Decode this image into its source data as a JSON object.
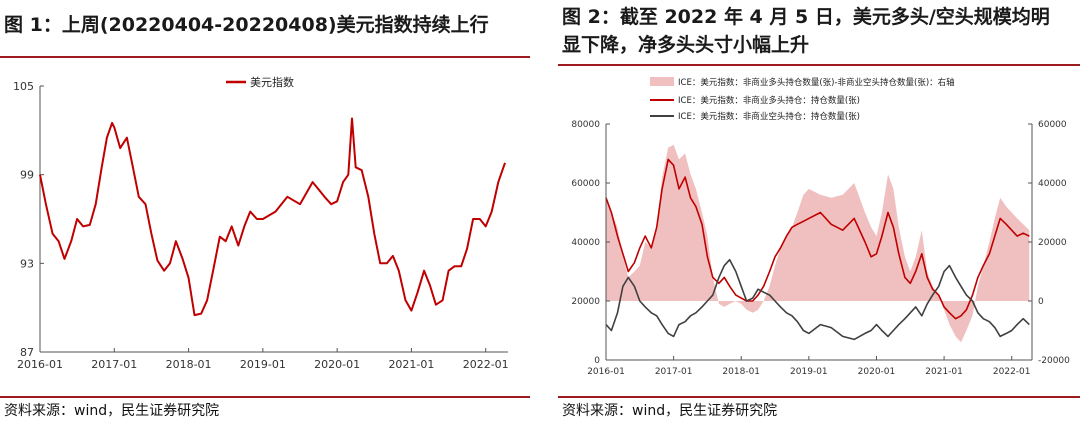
{
  "left": {
    "title": "图 1：上周(20220404-20220408)美元指数持续上行",
    "source": "资料来源：wind，民生证券研究院",
    "chart_data": {
      "type": "line",
      "title": "",
      "xlabel": "",
      "ylabel": "",
      "ylim": [
        87,
        105
      ],
      "yticks": [
        "87",
        "93",
        "99",
        "105"
      ],
      "xticks": [
        "2016-01",
        "2017-01",
        "2018-01",
        "2019-01",
        "2020-01",
        "2021-01",
        "2022-01"
      ],
      "legend": "top-center",
      "grid": false,
      "series": [
        {
          "name": "美元指数",
          "color": "#c00000",
          "x": [
            2016.0,
            2016.08,
            2016.17,
            2016.25,
            2016.33,
            2016.42,
            2016.5,
            2016.58,
            2016.67,
            2016.75,
            2016.83,
            2016.9,
            2016.97,
            2017.0,
            2017.08,
            2017.17,
            2017.25,
            2017.33,
            2017.42,
            2017.5,
            2017.58,
            2017.67,
            2017.75,
            2017.83,
            2017.92,
            2018.0,
            2018.08,
            2018.17,
            2018.25,
            2018.33,
            2018.42,
            2018.5,
            2018.58,
            2018.67,
            2018.75,
            2018.83,
            2018.92,
            2019.0,
            2019.17,
            2019.33,
            2019.5,
            2019.67,
            2019.75,
            2019.83,
            2019.92,
            2020.0,
            2020.08,
            2020.15,
            2020.2,
            2020.25,
            2020.33,
            2020.42,
            2020.5,
            2020.58,
            2020.67,
            2020.75,
            2020.83,
            2020.92,
            2021.0,
            2021.08,
            2021.17,
            2021.25,
            2021.33,
            2021.42,
            2021.5,
            2021.58,
            2021.67,
            2021.75,
            2021.83,
            2021.92,
            2022.0,
            2022.08,
            2022.17,
            2022.26
          ],
          "y": [
            99.0,
            97.0,
            95.0,
            94.5,
            93.3,
            94.5,
            96.0,
            95.5,
            95.6,
            97.0,
            99.5,
            101.5,
            102.5,
            102.2,
            100.8,
            101.5,
            99.5,
            97.5,
            97.0,
            95.0,
            93.2,
            92.5,
            93.0,
            94.5,
            93.3,
            92.0,
            89.5,
            89.6,
            90.5,
            92.5,
            94.8,
            94.5,
            95.5,
            94.2,
            95.5,
            96.5,
            96.0,
            96.0,
            96.5,
            97.5,
            97.0,
            98.5,
            98.0,
            97.5,
            97.0,
            97.2,
            98.5,
            99.0,
            102.8,
            99.5,
            99.3,
            97.5,
            95.0,
            93.0,
            93.0,
            93.5,
            92.5,
            90.5,
            89.8,
            91.0,
            92.5,
            91.5,
            90.2,
            90.5,
            92.5,
            92.8,
            92.8,
            94.0,
            96.0,
            96.0,
            95.5,
            96.5,
            98.5,
            99.8
          ]
        }
      ]
    }
  },
  "right": {
    "title_lines": [
      "图 2：截至 2022 年 4 月 5 日，美元多头/空头规模均明",
      "显下降，净多头头寸小幅上升"
    ],
    "source": "资料来源：wind，民生证券研究院",
    "chart_data": {
      "type": "line",
      "title": "",
      "xlabel": "",
      "ylabel": "",
      "ylim": [
        0,
        80000
      ],
      "y2lim": [
        -20000,
        60000
      ],
      "yticks": [
        "0",
        "20000",
        "40000",
        "60000",
        "80000"
      ],
      "y2ticks": [
        "-20000",
        "0",
        "20000",
        "40000",
        "60000"
      ],
      "xticks": [
        "2016-01",
        "2017-01",
        "2018-01",
        "2019-01",
        "2020-01",
        "2021-01",
        "2022-01"
      ],
      "legend": "top-left",
      "grid": false,
      "series": [
        {
          "name": "ICE：美元指数：非商业多头持仓数量(张)-非商业空头持仓数量(张)：右轴",
          "kind": "area",
          "axis": "right",
          "color": "#f0c0c0",
          "x": [
            2016.0,
            2016.08,
            2016.17,
            2016.25,
            2016.33,
            2016.42,
            2016.5,
            2016.58,
            2016.67,
            2016.75,
            2016.83,
            2016.92,
            2017.0,
            2017.08,
            2017.17,
            2017.25,
            2017.33,
            2017.42,
            2017.5,
            2017.58,
            2017.67,
            2017.75,
            2017.83,
            2017.92,
            2018.0,
            2018.08,
            2018.17,
            2018.25,
            2018.33,
            2018.42,
            2018.5,
            2018.58,
            2018.67,
            2018.75,
            2018.83,
            2018.92,
            2019.0,
            2019.17,
            2019.33,
            2019.5,
            2019.67,
            2019.83,
            2019.92,
            2020.0,
            2020.08,
            2020.17,
            2020.25,
            2020.33,
            2020.42,
            2020.5,
            2020.58,
            2020.67,
            2020.75,
            2020.83,
            2020.92,
            2021.0,
            2021.08,
            2021.17,
            2021.25,
            2021.33,
            2021.42,
            2021.5,
            2021.58,
            2021.67,
            2021.75,
            2021.83,
            2021.92,
            2022.0,
            2022.08,
            2022.17,
            2022.26
          ],
          "y": [
            36000,
            30000,
            25000,
            15000,
            8000,
            10000,
            12000,
            20000,
            18000,
            25000,
            42000,
            52000,
            53000,
            48000,
            50000,
            43000,
            38000,
            30000,
            22000,
            8000,
            -1000,
            -2000,
            -1000,
            0,
            -1000,
            -3000,
            -4000,
            -3000,
            0,
            5000,
            12000,
            18000,
            22000,
            25000,
            30000,
            36000,
            38000,
            36000,
            35000,
            36000,
            40000,
            30000,
            25000,
            22000,
            30000,
            43000,
            38000,
            25000,
            15000,
            10000,
            15000,
            24000,
            10000,
            5000,
            2000,
            -3000,
            -8000,
            -12000,
            -14000,
            -10000,
            -5000,
            5000,
            12000,
            20000,
            28000,
            35000,
            32000,
            30000,
            28000,
            26000,
            24000
          ]
        },
        {
          "name": "ICE：美元指数：非商业多头持仓：持仓数量(张)",
          "kind": "line",
          "axis": "left",
          "color": "#c00000",
          "x": [
            2016.0,
            2016.08,
            2016.17,
            2016.25,
            2016.33,
            2016.42,
            2016.5,
            2016.58,
            2016.67,
            2016.75,
            2016.83,
            2016.92,
            2017.0,
            2017.08,
            2017.17,
            2017.25,
            2017.33,
            2017.42,
            2017.5,
            2017.58,
            2017.67,
            2017.75,
            2017.83,
            2017.92,
            2018.0,
            2018.08,
            2018.17,
            2018.25,
            2018.33,
            2018.42,
            2018.5,
            2018.58,
            2018.67,
            2018.75,
            2018.83,
            2018.92,
            2019.0,
            2019.17,
            2019.33,
            2019.5,
            2019.67,
            2019.83,
            2019.92,
            2020.0,
            2020.08,
            2020.17,
            2020.25,
            2020.33,
            2020.42,
            2020.5,
            2020.58,
            2020.67,
            2020.75,
            2020.83,
            2020.92,
            2021.0,
            2021.08,
            2021.17,
            2021.25,
            2021.33,
            2021.42,
            2021.5,
            2021.58,
            2021.67,
            2021.75,
            2021.83,
            2021.92,
            2022.0,
            2022.08,
            2022.17,
            2022.26
          ],
          "y": [
            55000,
            50000,
            42000,
            36000,
            30000,
            33000,
            38000,
            42000,
            38000,
            45000,
            58000,
            68000,
            66000,
            58000,
            62000,
            55000,
            52000,
            46000,
            35000,
            28000,
            26000,
            28000,
            25000,
            22000,
            21000,
            20000,
            20000,
            22000,
            25000,
            30000,
            35000,
            38000,
            42000,
            45000,
            46000,
            47000,
            48000,
            50000,
            46000,
            44000,
            48000,
            40000,
            35000,
            36000,
            42000,
            50000,
            45000,
            36000,
            28000,
            26000,
            30000,
            36000,
            28000,
            24000,
            22000,
            18000,
            16000,
            14000,
            15000,
            17000,
            22000,
            28000,
            32000,
            36000,
            42000,
            48000,
            46000,
            44000,
            42000,
            43000,
            42000
          ]
        },
        {
          "name": "ICE：美元指数：非商业空头持仓：持仓数量(张)",
          "kind": "line",
          "axis": "left",
          "color": "#404040",
          "x": [
            2016.0,
            2016.08,
            2016.17,
            2016.25,
            2016.33,
            2016.42,
            2016.5,
            2016.58,
            2016.67,
            2016.75,
            2016.83,
            2016.92,
            2017.0,
            2017.08,
            2017.17,
            2017.25,
            2017.33,
            2017.42,
            2017.5,
            2017.58,
            2017.67,
            2017.75,
            2017.83,
            2017.92,
            2018.0,
            2018.08,
            2018.17,
            2018.25,
            2018.33,
            2018.42,
            2018.5,
            2018.58,
            2018.67,
            2018.75,
            2018.83,
            2018.92,
            2019.0,
            2019.17,
            2019.33,
            2019.5,
            2019.67,
            2019.83,
            2019.92,
            2020.0,
            2020.08,
            2020.17,
            2020.25,
            2020.33,
            2020.42,
            2020.5,
            2020.58,
            2020.67,
            2020.75,
            2020.83,
            2020.92,
            2021.0,
            2021.08,
            2021.17,
            2021.25,
            2021.33,
            2021.42,
            2021.5,
            2021.58,
            2021.67,
            2021.75,
            2021.83,
            2021.92,
            2022.0,
            2022.08,
            2022.17,
            2022.26
          ],
          "y": [
            12000,
            10000,
            16000,
            25000,
            28000,
            25000,
            20000,
            18000,
            16000,
            15000,
            12000,
            9000,
            8000,
            12000,
            13000,
            15000,
            16000,
            18000,
            20000,
            22000,
            28000,
            32000,
            34000,
            30000,
            25000,
            20000,
            21000,
            24000,
            23000,
            22000,
            20000,
            18000,
            16000,
            15000,
            13000,
            10000,
            9000,
            12000,
            11000,
            8000,
            7000,
            9000,
            10000,
            12000,
            10000,
            8000,
            10000,
            12000,
            14000,
            16000,
            18000,
            15000,
            19000,
            22000,
            25000,
            30000,
            32000,
            28000,
            25000,
            22000,
            20000,
            16000,
            14000,
            13000,
            11000,
            8000,
            9000,
            10000,
            12000,
            14000,
            12000
          ]
        }
      ]
    }
  }
}
